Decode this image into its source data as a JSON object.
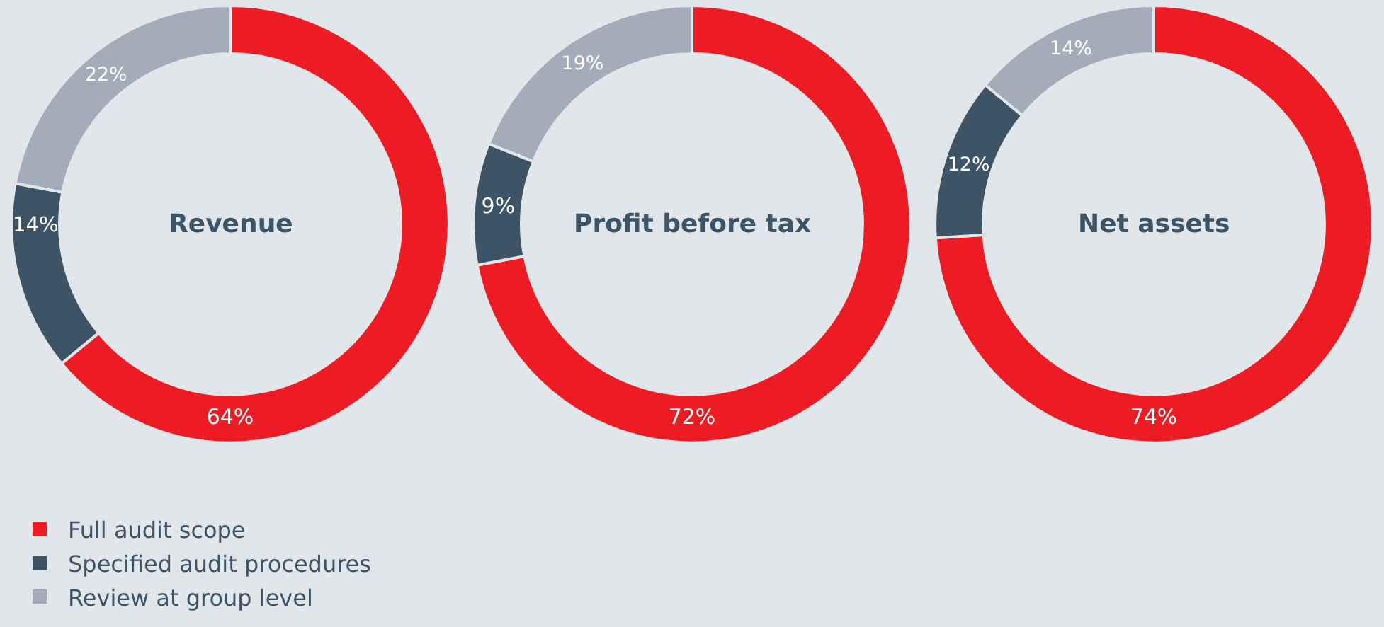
{
  "chart_data": [
    {
      "type": "donut",
      "title": "Revenue",
      "categories": [
        "Full audit scope",
        "Specified audit procedures",
        "Review at group level"
      ],
      "values": [
        64,
        14,
        22
      ],
      "colors": [
        "#ed1c24",
        "#3d5366",
        "#a3acb9"
      ],
      "value_labels": [
        "64%",
        "14%",
        "22%"
      ],
      "legend": "bottom left"
    },
    {
      "type": "donut",
      "title": "Profit before tax",
      "categories": [
        null,
        null,
        null
      ],
      "values": [
        72,
        9,
        19
      ],
      "colors": [
        "#ed1c24",
        "#3d5366",
        "#a3acb9"
      ],
      "value_labels": [
        "72%",
        "9%",
        "19%"
      ]
    },
    {
      "type": "donut",
      "title": "Net assets",
      "categories": [
        null,
        null,
        null
      ],
      "values": [
        74,
        12,
        14
      ],
      "colors": [
        "#ed1c24",
        "#3d5366",
        "#a3acb9"
      ],
      "value_labels": [
        "74%",
        "12%",
        "14%"
      ]
    }
  ]
}
